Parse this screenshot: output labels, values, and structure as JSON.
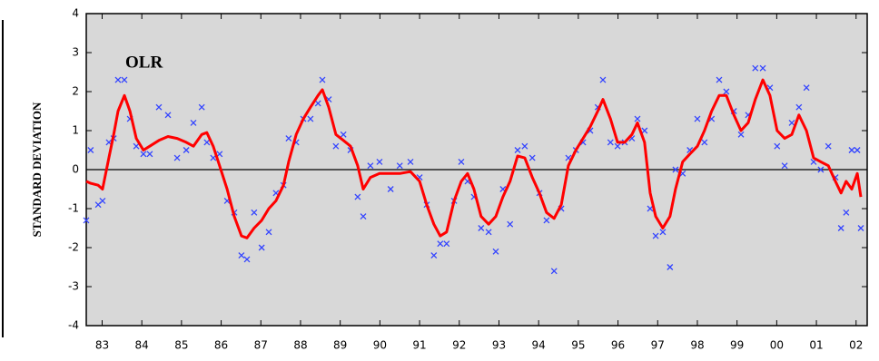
{
  "chart_data": {
    "type": "line",
    "title": "OLR",
    "ylabel": "STANDARD DEVIATION",
    "x": [
      1983.1,
      1983.21,
      1983.4,
      1983.51,
      1983.67,
      1983.79,
      1983.9,
      1984.06,
      1984.2,
      1984.36,
      1984.54,
      1984.7,
      1984.93,
      1985.16,
      1985.39,
      1985.62,
      1985.8,
      1986.01,
      1986.14,
      1986.3,
      1986.46,
      1986.65,
      1986.83,
      1987.01,
      1987.15,
      1987.33,
      1987.52,
      1987.7,
      1987.88,
      1988.07,
      1988.2,
      1988.39,
      1988.57,
      1988.75,
      1988.94,
      1989.05,
      1989.21,
      1989.39,
      1989.58,
      1989.76,
      1989.94,
      1990.08,
      1990.26,
      1990.49,
      1990.77,
      1991.0,
      1991.27,
      1991.5,
      1991.68,
      1991.86,
      1992.02,
      1992.18,
      1992.37,
      1992.55,
      1992.71,
      1992.87,
      1993.05,
      1993.24,
      1993.42,
      1993.6,
      1993.78,
      1993.97,
      1994.15,
      1994.34,
      1994.52,
      1994.7,
      1994.89,
      1995.07,
      1995.25,
      1995.44,
      1995.62,
      1995.8,
      1995.99,
      1996.12,
      1996.31,
      1996.49,
      1996.67,
      1996.85,
      1996.99,
      1997.17,
      1997.31,
      1997.45,
      1997.63,
      1997.81,
      1997.95,
      1998.13,
      1998.31,
      1998.5,
      1998.68,
      1998.86,
      1999.05,
      1999.23,
      1999.42,
      1999.6,
      1999.78,
      1999.96,
      2000.15,
      2000.33,
      2000.51,
      2000.7,
      2000.88,
      2001.06,
      2001.25,
      2001.43,
      2001.61,
      2001.8,
      2001.98,
      2002.12,
      2002.25,
      2002.39,
      2002.53,
      2002.62
    ],
    "series": [
      {
        "style": "line",
        "color": "#ff0000",
        "values": [
          -0.3,
          -0.35,
          -0.4,
          -0.5,
          0.3,
          0.9,
          1.5,
          1.9,
          1.5,
          0.8,
          0.5,
          0.6,
          0.75,
          0.85,
          0.8,
          0.7,
          0.6,
          0.9,
          0.95,
          0.6,
          0.1,
          -0.5,
          -1.2,
          -1.7,
          -1.75,
          -1.5,
          -1.3,
          -1.0,
          -0.8,
          -0.4,
          0.2,
          0.9,
          1.3,
          1.6,
          1.9,
          2.05,
          1.6,
          0.9,
          0.75,
          0.6,
          0.1,
          -0.5,
          -0.2,
          -0.1,
          -0.1,
          -0.1,
          -0.05,
          -0.3,
          -0.9,
          -1.4,
          -1.7,
          -1.6,
          -0.8,
          -0.3,
          -0.1,
          -0.5,
          -1.2,
          -1.4,
          -1.2,
          -0.7,
          -0.3,
          0.35,
          0.3,
          -0.2,
          -0.6,
          -1.1,
          -1.25,
          -0.9,
          0.1,
          0.5,
          0.8,
          1.1,
          1.5,
          1.8,
          1.3,
          0.7,
          0.7,
          0.9,
          1.2,
          0.7,
          -0.6,
          -1.2,
          -1.5,
          -1.2,
          -0.5,
          0.2,
          0.4,
          0.6,
          1.0,
          1.5,
          1.9,
          1.9,
          1.4,
          1.0,
          1.2,
          1.8,
          2.3,
          1.9,
          1.0,
          0.8,
          0.9,
          1.4,
          1.0,
          0.3,
          0.2,
          0.1,
          -0.3,
          -0.6,
          -0.3,
          -0.5,
          -0.1,
          -0.7
        ]
      },
      {
        "style": "x",
        "color": "#3344ff",
        "values": [
          -1.3,
          0.5,
          -0.9,
          -0.8,
          0.7,
          0.8,
          2.3,
          2.3,
          1.3,
          0.6,
          0.4,
          0.4,
          1.6,
          1.4,
          0.3,
          0.5,
          1.2,
          1.6,
          0.7,
          0.3,
          0.4,
          -0.8,
          -1.1,
          -2.2,
          -2.3,
          -1.1,
          -2.0,
          -1.6,
          -0.6,
          -0.4,
          0.8,
          0.7,
          1.3,
          1.3,
          1.7,
          2.3,
          1.8,
          0.6,
          0.9,
          0.5,
          -0.7,
          -1.2,
          0.1,
          0.2,
          -0.5,
          0.1,
          0.2,
          -0.2,
          -0.9,
          -2.2,
          -1.9,
          -1.9,
          -0.8,
          0.2,
          -0.3,
          -0.7,
          -1.5,
          -1.6,
          -2.1,
          -0.5,
          -1.4,
          0.5,
          0.6,
          0.3,
          -0.6,
          -1.3,
          -2.6,
          -1.0,
          0.3,
          0.5,
          0.7,
          1.0,
          1.6,
          2.3,
          0.7,
          0.6,
          0.7,
          0.8,
          1.3,
          1.0,
          -1.0,
          -1.7,
          -1.6,
          -2.5,
          0.0,
          -0.1,
          0.5,
          1.3,
          0.7,
          1.3,
          2.3,
          2.0,
          1.5,
          0.9,
          1.4,
          2.6,
          2.6,
          2.1,
          0.6,
          0.1,
          1.2,
          1.6,
          2.1,
          0.2,
          0.0,
          0.6,
          -0.2,
          -1.5,
          -1.1,
          0.5,
          0.5,
          -1.5
        ]
      }
    ],
    "xlim": [
      1983.1,
      2002.78
    ],
    "xticks": [
      {
        "value": 1983.5,
        "label": "83"
      },
      {
        "value": 1984.5,
        "label": "84"
      },
      {
        "value": 1985.5,
        "label": "85"
      },
      {
        "value": 1986.5,
        "label": "86"
      },
      {
        "value": 1987.5,
        "label": "87"
      },
      {
        "value": 1988.5,
        "label": "88"
      },
      {
        "value": 1989.5,
        "label": "89"
      },
      {
        "value": 1990.5,
        "label": "90"
      },
      {
        "value": 1991.5,
        "label": "91"
      },
      {
        "value": 1992.5,
        "label": "92"
      },
      {
        "value": 1993.5,
        "label": "93"
      },
      {
        "value": 1994.5,
        "label": "94"
      },
      {
        "value": 1995.5,
        "label": "95"
      },
      {
        "value": 1996.5,
        "label": "96"
      },
      {
        "value": 1997.5,
        "label": "97"
      },
      {
        "value": 1998.5,
        "label": "98"
      },
      {
        "value": 1999.5,
        "label": "99"
      },
      {
        "value": 2000.5,
        "label": "00"
      },
      {
        "value": 2001.5,
        "label": "01"
      },
      {
        "value": 2002.5,
        "label": "02"
      }
    ],
    "ylim": [
      -4,
      4
    ],
    "yticks": [
      4,
      3,
      2,
      1,
      0,
      -1,
      -2,
      -3,
      -4
    ]
  }
}
